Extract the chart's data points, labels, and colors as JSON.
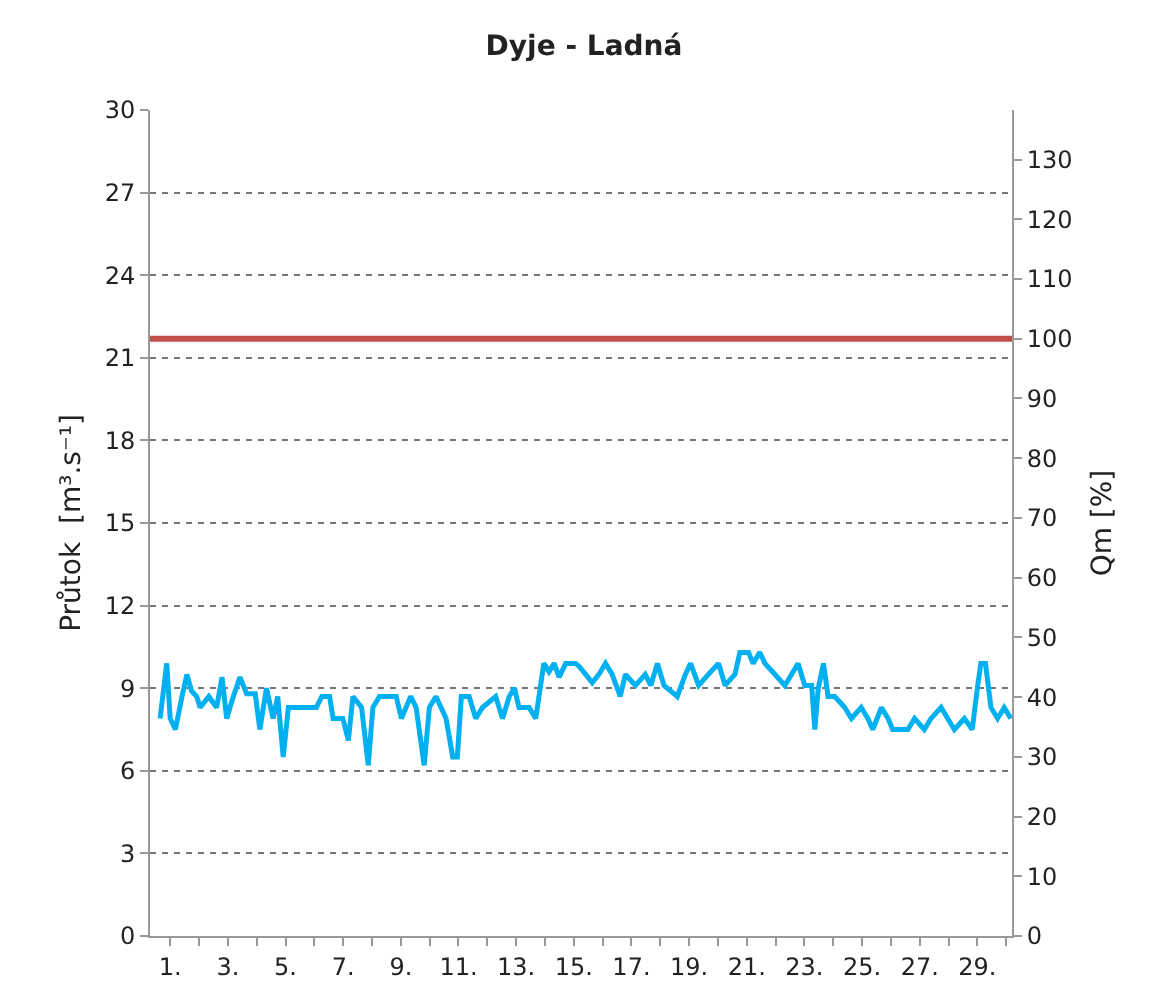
{
  "chart_data": {
    "type": "line",
    "title": "Dyje - Ladná",
    "ylabel": "Průtok  [m³.s⁻¹]",
    "y2label": "Qm [%]",
    "x": [
      0.65,
      0.88,
      1.0,
      1.18,
      1.41,
      1.58,
      1.74,
      1.92,
      2.04,
      2.34,
      2.61,
      2.8,
      2.96,
      3.19,
      3.42,
      3.65,
      3.95,
      4.11,
      4.34,
      4.57,
      4.73,
      4.92,
      5.1,
      6.07,
      6.26,
      6.53,
      6.65,
      6.99,
      7.18,
      7.34,
      7.64,
      7.87,
      8.03,
      8.26,
      8.84,
      9.02,
      9.34,
      9.53,
      9.81,
      9.99,
      10.22,
      10.57,
      10.8,
      10.96,
      11.1,
      11.37,
      11.6,
      11.83,
      12.29,
      12.53,
      12.76,
      12.94,
      13.1,
      13.45,
      13.68,
      13.96,
      14.14,
      14.32,
      14.49,
      14.72,
      15.06,
      15.18,
      15.41,
      15.64,
      15.87,
      16.1,
      16.33,
      16.61,
      16.79,
      17.14,
      17.48,
      17.67,
      17.9,
      18.13,
      18.59,
      18.87,
      19.05,
      19.33,
      19.67,
      20.02,
      20.25,
      20.59,
      20.76,
      21.06,
      21.22,
      21.45,
      21.63,
      21.98,
      22.32,
      22.55,
      22.78,
      23.01,
      23.25,
      23.36,
      23.48,
      23.66,
      23.82,
      24.05,
      24.4,
      24.63,
      24.97,
      25.2,
      25.37,
      25.67,
      25.9,
      26.06,
      26.59,
      26.82,
      27.16,
      27.39,
      27.74,
      27.97,
      28.2,
      28.55,
      28.82,
      29.01,
      29.12,
      29.28,
      29.47,
      29.7,
      29.93,
      30.16
    ],
    "series": [
      {
        "color": "#00b0f0",
        "values": [
          7.9,
          9.9,
          7.9,
          7.5,
          8.7,
          9.5,
          8.9,
          8.7,
          8.3,
          8.7,
          8.3,
          9.4,
          7.9,
          8.7,
          9.4,
          8.8,
          8.8,
          7.5,
          9.0,
          7.9,
          8.7,
          6.5,
          8.3,
          8.3,
          8.7,
          8.7,
          7.9,
          7.9,
          7.1,
          8.7,
          8.3,
          6.2,
          8.3,
          8.7,
          8.7,
          7.9,
          8.7,
          8.3,
          6.2,
          8.3,
          8.7,
          7.9,
          6.5,
          6.5,
          8.7,
          8.7,
          7.9,
          8.3,
          8.7,
          7.9,
          8.7,
          9.0,
          8.3,
          8.3,
          7.9,
          9.9,
          9.6,
          9.9,
          9.4,
          9.9,
          9.9,
          9.8,
          9.5,
          9.2,
          9.5,
          9.9,
          9.5,
          8.7,
          9.5,
          9.1,
          9.5,
          9.1,
          9.9,
          9.1,
          8.7,
          9.5,
          9.9,
          9.1,
          9.5,
          9.9,
          9.1,
          9.5,
          10.3,
          10.3,
          9.9,
          10.3,
          9.9,
          9.5,
          9.1,
          9.5,
          9.9,
          9.1,
          9.1,
          7.5,
          9.0,
          9.9,
          8.7,
          8.7,
          8.3,
          7.9,
          8.3,
          7.9,
          7.5,
          8.3,
          7.9,
          7.5,
          7.5,
          7.9,
          7.5,
          7.9,
          8.3,
          7.9,
          7.5,
          7.9,
          7.5,
          9.1,
          9.9,
          9.9,
          8.3,
          7.9,
          8.3,
          7.9
        ]
      }
    ],
    "ref_lines": [
      {
        "axis": "y2",
        "value": 100,
        "color": "#c0504d"
      }
    ],
    "xlim": [
      0.3,
      30.2
    ],
    "xticks": [
      {
        "value": 1,
        "label": "1."
      },
      {
        "value": 2,
        "label": null
      },
      {
        "value": 3,
        "label": "3."
      },
      {
        "value": 4,
        "label": null
      },
      {
        "value": 5,
        "label": "5."
      },
      {
        "value": 6,
        "label": null
      },
      {
        "value": 7,
        "label": "7."
      },
      {
        "value": 8,
        "label": null
      },
      {
        "value": 9,
        "label": "9."
      },
      {
        "value": 10,
        "label": null
      },
      {
        "value": 11,
        "label": "11."
      },
      {
        "value": 12,
        "label": null
      },
      {
        "value": 13,
        "label": "13."
      },
      {
        "value": 14,
        "label": null
      },
      {
        "value": 15,
        "label": "15."
      },
      {
        "value": 16,
        "label": null
      },
      {
        "value": 17,
        "label": "17."
      },
      {
        "value": 18,
        "label": null
      },
      {
        "value": 19,
        "label": "19."
      },
      {
        "value": 20,
        "label": null
      },
      {
        "value": 21,
        "label": "21."
      },
      {
        "value": 22,
        "label": null
      },
      {
        "value": 23,
        "label": "23."
      },
      {
        "value": 24,
        "label": null
      },
      {
        "value": 25,
        "label": "25."
      },
      {
        "value": 26,
        "label": null
      },
      {
        "value": 27,
        "label": "27."
      },
      {
        "value": 28,
        "label": null
      },
      {
        "value": 29,
        "label": "29."
      },
      {
        "value": 30,
        "label": null
      }
    ],
    "ylim": [
      0,
      30
    ],
    "yticks": [
      0,
      3,
      6,
      9,
      12,
      15,
      18,
      21,
      24,
      27,
      30
    ],
    "y2lim": [
      0,
      138.3
    ],
    "y2ticks": [
      0,
      10,
      20,
      30,
      40,
      50,
      60,
      70,
      80,
      90,
      100,
      110,
      120,
      130
    ],
    "grid": "y",
    "marker": "none",
    "line_style": "solid"
  }
}
